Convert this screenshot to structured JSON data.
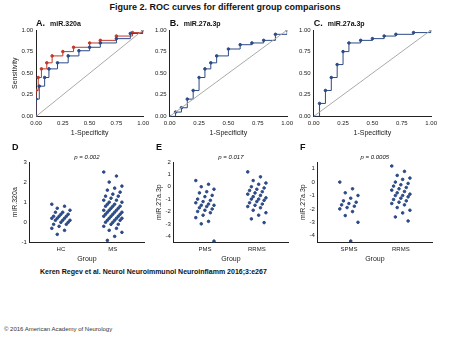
{
  "title": "Figure 2. ROC curves for different group comparisons",
  "citation": "Keren Regev et al. Neurol Neuroimmunol Neuroinflamm 2016;3:e267",
  "copyright": "© 2016 American Academy of Neurology",
  "chart_data": [
    {
      "type": "line",
      "title": "A.",
      "subtitle": "miR.320a",
      "x_label": "1-Specificity",
      "y_label": "Sensitivity",
      "xlim": [
        0,
        1
      ],
      "ylim": [
        0,
        1
      ],
      "xticks": [
        {
          "value": 0,
          "label": "0.00"
        },
        {
          "value": 0.25,
          "label": "0.25"
        },
        {
          "value": 0.5,
          "label": "0.50"
        },
        {
          "value": 0.75,
          "label": "0.75"
        },
        {
          "value": 1,
          "label": "1.00"
        }
      ],
      "yticks": [
        {
          "value": 0,
          "label": "0.00"
        },
        {
          "value": 0.25,
          "label": "0.25"
        },
        {
          "value": 0.5,
          "label": "0.50"
        },
        {
          "value": 0.75,
          "label": "0.75"
        },
        {
          "value": 1,
          "label": "1.00"
        }
      ],
      "grid": false,
      "series": [
        {
          "color": "#aaaaaa",
          "marker": "none",
          "line_style": "solid",
          "x": [
            0,
            1
          ],
          "values": [
            0,
            1
          ]
        },
        {
          "color": "#2c4a86",
          "marker": "circle",
          "line_style": "step",
          "x": [
            0,
            0,
            0.03,
            0.08,
            0.12,
            0.2,
            0.3,
            0.4,
            0.5,
            0.6,
            0.75,
            0.88,
            1
          ],
          "values": [
            0,
            0.2,
            0.35,
            0.45,
            0.55,
            0.62,
            0.7,
            0.76,
            0.8,
            0.85,
            0.9,
            0.96,
            1
          ]
        },
        {
          "color": "#c0392b",
          "marker": "circle",
          "line_style": "step",
          "x": [
            0,
            0,
            0.02,
            0.05,
            0.1,
            0.15,
            0.25,
            0.35,
            0.5,
            0.6,
            0.75,
            0.9,
            1
          ],
          "values": [
            0,
            0.3,
            0.45,
            0.55,
            0.62,
            0.7,
            0.75,
            0.8,
            0.85,
            0.88,
            0.93,
            0.97,
            1
          ]
        }
      ]
    },
    {
      "type": "line",
      "title": "B.",
      "subtitle": "miR.27a.3p",
      "x_label": "1-Specificity",
      "xlim": [
        0,
        1
      ],
      "ylim": [
        0,
        1
      ],
      "xticks": [
        {
          "value": 0,
          "label": "0.00"
        },
        {
          "value": 0.25,
          "label": "0.25"
        },
        {
          "value": 0.5,
          "label": "0.50"
        },
        {
          "value": 0.75,
          "label": "0.75"
        },
        {
          "value": 1,
          "label": "1.00"
        }
      ],
      "yticks": [
        {
          "value": 0,
          "label": "0.00"
        },
        {
          "value": 0.25,
          "label": "0.25"
        },
        {
          "value": 0.5,
          "label": "0.50"
        },
        {
          "value": 0.75,
          "label": "0.75"
        },
        {
          "value": 1,
          "label": "1.00"
        }
      ],
      "grid": false,
      "series": [
        {
          "color": "#aaaaaa",
          "marker": "none",
          "line_style": "solid",
          "x": [
            0,
            1
          ],
          "values": [
            0,
            1
          ]
        },
        {
          "color": "#2c4a86",
          "marker": "circle",
          "line_style": "step",
          "x": [
            0,
            0.05,
            0.1,
            0.15,
            0.2,
            0.25,
            0.3,
            0.35,
            0.4,
            0.5,
            0.6,
            0.7,
            0.8,
            0.9,
            1
          ],
          "values": [
            0,
            0.05,
            0.1,
            0.2,
            0.3,
            0.45,
            0.55,
            0.62,
            0.7,
            0.78,
            0.83,
            0.85,
            0.88,
            0.95,
            1
          ]
        }
      ]
    },
    {
      "type": "line",
      "title": "C.",
      "subtitle": "miR.27a.3p",
      "x_label": "1-Specificity",
      "xlim": [
        0,
        1
      ],
      "ylim": [
        0,
        1
      ],
      "xticks": [
        {
          "value": 0,
          "label": "0.00"
        },
        {
          "value": 0.25,
          "label": "0.25"
        },
        {
          "value": 0.5,
          "label": "0.50"
        },
        {
          "value": 0.75,
          "label": "0.75"
        },
        {
          "value": 1,
          "label": "1.00"
        }
      ],
      "yticks": [
        {
          "value": 0,
          "label": "0.00"
        },
        {
          "value": 0.25,
          "label": "0.25"
        },
        {
          "value": 0.5,
          "label": "0.50"
        },
        {
          "value": 0.75,
          "label": "0.75"
        },
        {
          "value": 1,
          "label": "1.00"
        }
      ],
      "grid": false,
      "series": [
        {
          "color": "#aaaaaa",
          "marker": "none",
          "line_style": "solid",
          "x": [
            0,
            1
          ],
          "values": [
            0,
            1
          ]
        },
        {
          "color": "#2c4a86",
          "marker": "circle",
          "line_style": "step",
          "x": [
            0,
            0.05,
            0.1,
            0.15,
            0.2,
            0.25,
            0.3,
            0.4,
            0.5,
            0.6,
            0.7,
            0.85,
            1
          ],
          "values": [
            0,
            0.15,
            0.3,
            0.45,
            0.6,
            0.75,
            0.85,
            0.88,
            0.9,
            0.93,
            0.95,
            0.97,
            1
          ]
        }
      ]
    },
    {
      "type": "strip",
      "title": "D",
      "annotation": "p = 0.002",
      "x_label": "Group",
      "y_label": "miR.320a",
      "categories": [
        "HC",
        "MS"
      ],
      "ylim": [
        -1,
        3
      ],
      "yticks": [
        -1,
        0,
        1,
        2,
        3
      ],
      "grid": false,
      "color": "#2c4a86",
      "marker": "circle",
      "values": [
        [
          0.9,
          0.8,
          0.7,
          0.6,
          0.5,
          0.5,
          0.4,
          0.4,
          0.3,
          0.3,
          0.3,
          0.2,
          0.2,
          0.2,
          0.1,
          0.1,
          0.1,
          0,
          0,
          -0.1,
          -0.1,
          -0.2,
          -0.3,
          -0.4,
          -0.6
        ],
        [
          2.5,
          2.3,
          2.0,
          1.8,
          1.7,
          1.6,
          1.5,
          1.4,
          1.3,
          1.3,
          1.2,
          1.1,
          1.1,
          1.0,
          1.0,
          0.9,
          0.9,
          0.8,
          0.8,
          0.8,
          0.7,
          0.7,
          0.6,
          0.6,
          0.6,
          0.5,
          0.5,
          0.5,
          0.4,
          0.4,
          0.4,
          0.3,
          0.3,
          0.3,
          0.2,
          0.2,
          0.2,
          0.1,
          0.1,
          0.1,
          0,
          0,
          -0.1,
          -0.1,
          -0.2,
          -0.3,
          -0.4,
          -0.5,
          -0.7,
          -0.9
        ]
      ]
    },
    {
      "type": "strip",
      "title": "E",
      "annotation": "p = 0.017",
      "x_label": "Group",
      "y_label": "miR.27a.3p",
      "categories": [
        "PMS",
        "RRMS"
      ],
      "ylim": [
        -4.5,
        2
      ],
      "yticks": [
        -4,
        -3,
        -2,
        -1,
        0,
        1,
        2
      ],
      "grid": false,
      "color": "#2c4a86",
      "marker": "circle",
      "values": [
        [
          0.5,
          0.2,
          0,
          -0.2,
          -0.4,
          -0.5,
          -0.7,
          -0.8,
          -1.0,
          -1.1,
          -1.2,
          -1.3,
          -1.4,
          -1.5,
          -1.5,
          -1.6,
          -1.7,
          -1.8,
          -1.9,
          -2.0,
          -2.1,
          -2.3,
          -2.5,
          -2.8,
          -3.0,
          -4.4
        ],
        [
          1.2,
          0.8,
          0.5,
          0.3,
          0.2,
          0,
          -0.1,
          -0.2,
          -0.3,
          -0.4,
          -0.5,
          -0.6,
          -0.7,
          -0.8,
          -0.9,
          -1.0,
          -1.0,
          -1.1,
          -1.2,
          -1.3,
          -1.4,
          -1.5,
          -1.6,
          -1.7,
          -1.9,
          -2.1,
          -2.3,
          -2.6,
          -2.9
        ]
      ]
    },
    {
      "type": "strip",
      "title": "F",
      "annotation": "p = 0.0005",
      "x_label": "Group",
      "y_label": "miR.27a.3p",
      "categories": [
        "SPMS",
        "RRMS"
      ],
      "ylim": [
        -4.5,
        1.5
      ],
      "yticks": [
        -4,
        -3,
        -2,
        -1,
        0,
        1
      ],
      "grid": false,
      "color": "#2c4a86",
      "marker": "circle",
      "values": [
        [
          0,
          -0.5,
          -0.8,
          -1.0,
          -1.2,
          -1.4,
          -1.5,
          -1.6,
          -1.7,
          -1.8,
          -1.9,
          -2.0,
          -2.2,
          -2.5,
          -3.0,
          -4.4
        ],
        [
          1.2,
          0.8,
          0.5,
          0.3,
          0.2,
          0,
          -0.1,
          -0.2,
          -0.3,
          -0.4,
          -0.5,
          -0.6,
          -0.7,
          -0.8,
          -0.9,
          -1.0,
          -1.0,
          -1.1,
          -1.2,
          -1.3,
          -1.4,
          -1.5,
          -1.6,
          -1.7,
          -1.9,
          -2.1,
          -2.3,
          -2.6,
          -2.9
        ]
      ]
    }
  ]
}
